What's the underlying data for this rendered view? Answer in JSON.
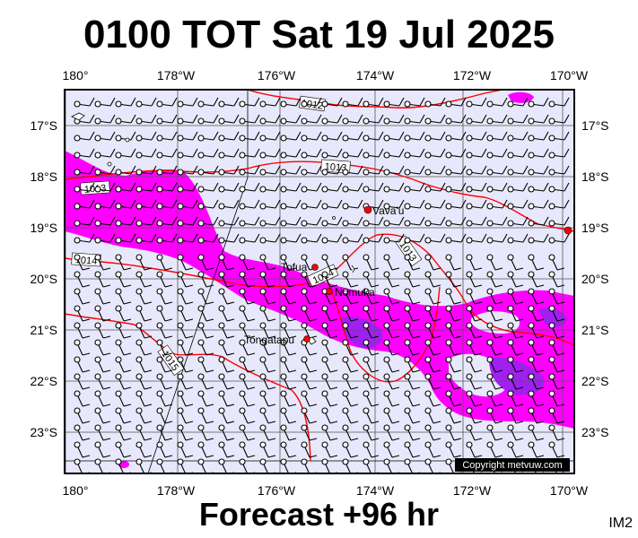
{
  "title": "0100 TOT Sat 19 Jul 2025",
  "footer": "Forecast +96 hr",
  "corner_tag": "IM2",
  "copyright": "Copyright metvuw.com",
  "lon_labels": [
    "180°",
    "178°W",
    "176°W",
    "174°W",
    "172°W",
    "170°W"
  ],
  "lat_labels": [
    "17°S",
    "18°S",
    "19°S",
    "20°S",
    "21°S",
    "22°S",
    "23°S"
  ],
  "places": [
    {
      "name": "Vava'u",
      "lon": -174.0,
      "lat": -18.65
    },
    {
      "name": "Tofua",
      "lon": -175.05,
      "lat": -19.75
    },
    {
      "name": "Nomuka",
      "lon": -174.8,
      "lat": -20.25
    },
    {
      "name": "Tongatapu",
      "lon": -175.2,
      "lat": -21.15
    }
  ],
  "isobar_labels": [
    "1012",
    "1013",
    "1013",
    "1014",
    "1014",
    "1013",
    "1015"
  ],
  "colors": {
    "sea": "#e8e8fc",
    "rain_light": "#ff00ff",
    "rain_heavy": "#a020f0",
    "isobar": "#ff0000",
    "place_marker": "#ff0000"
  }
}
